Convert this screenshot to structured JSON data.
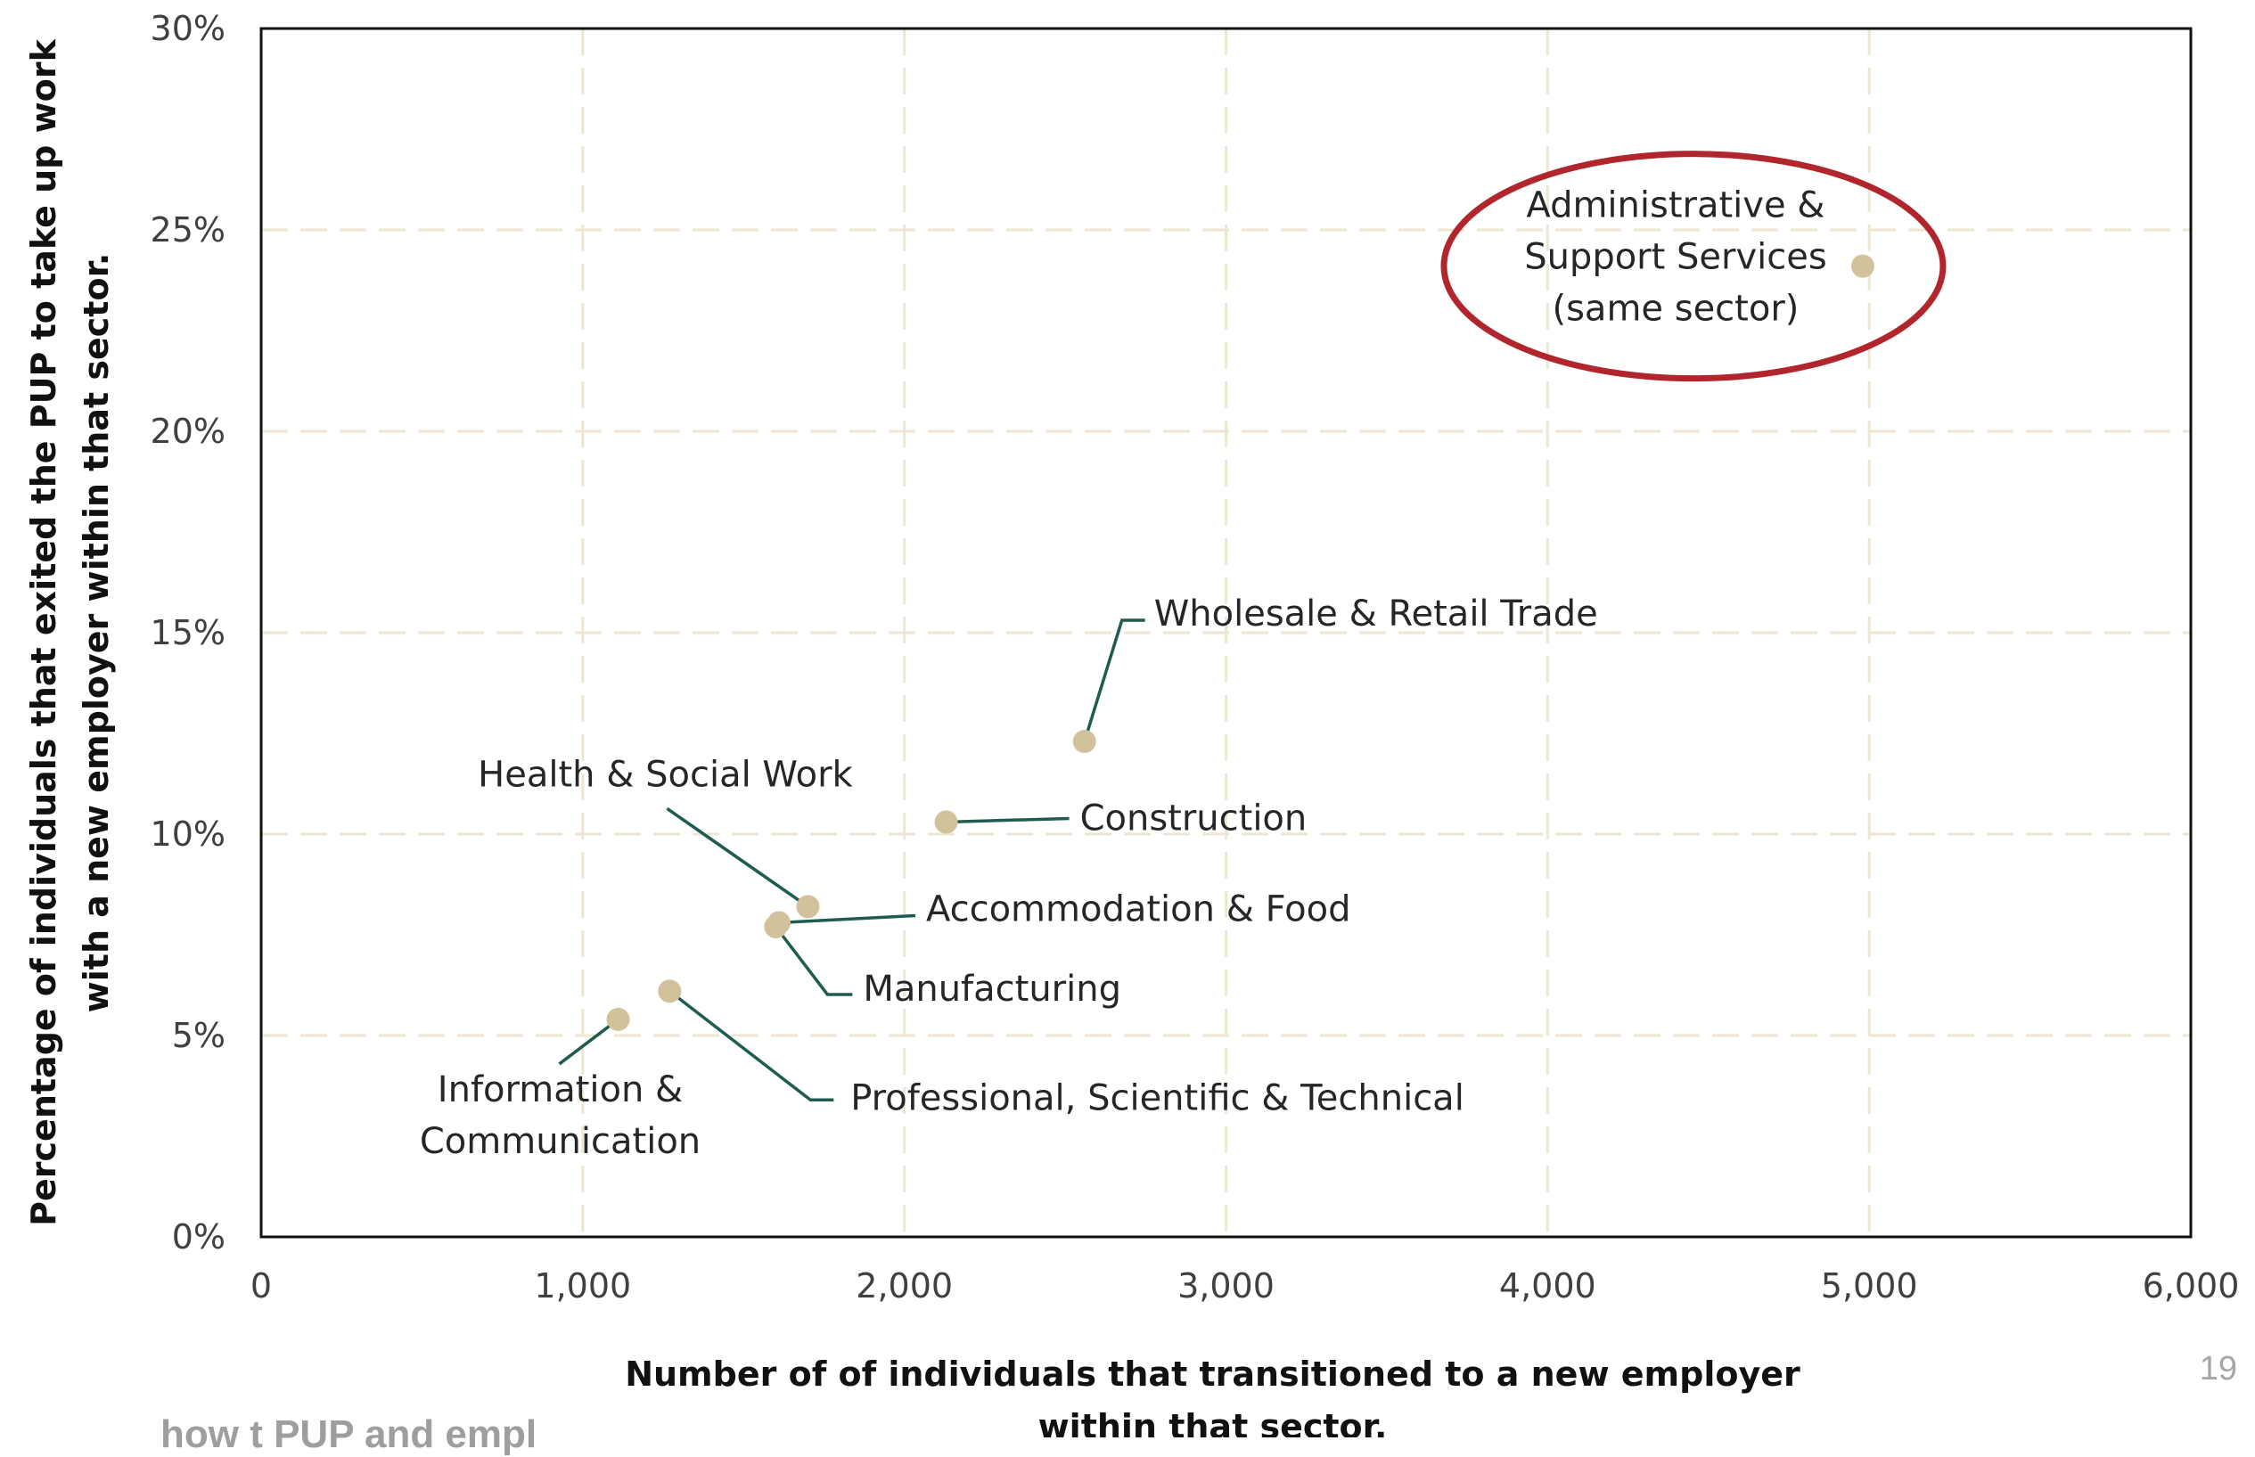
{
  "chart_data": {
    "type": "scatter",
    "title": "",
    "xlabel_lines": [
      "Number of of individuals that transitioned to a new employer",
      "within that sector."
    ],
    "ylabel_lines": [
      "Percentage of individuals that exited the PUP to take up work",
      "with a new employer within that sector."
    ],
    "xlim": [
      0,
      6000
    ],
    "ylim": [
      0,
      30
    ],
    "x_ticks": [
      0,
      1000,
      2000,
      3000,
      4000,
      5000,
      6000
    ],
    "x_tick_labels": [
      "0",
      "1,000",
      "2,000",
      "3,000",
      "4,000",
      "5,000",
      "6,000"
    ],
    "y_ticks": [
      0,
      5,
      10,
      15,
      20,
      25,
      30
    ],
    "y_tick_labels": [
      "0%",
      "5%",
      "10%",
      "15%",
      "20%",
      "25%",
      "30%"
    ],
    "grid": true,
    "marker_color": "#d2c29b",
    "leader_color": "#1f5c4f",
    "highlight_color": "#b0262c",
    "points": [
      {
        "label_lines": [
          "Administrative &",
          "Support Services",
          "(same sector)"
        ],
        "x": 4980,
        "y": 24.1,
        "highlight": true
      },
      {
        "label_lines": [
          "Wholesale & Retail Trade"
        ],
        "x": 2560,
        "y": 12.3
      },
      {
        "label_lines": [
          "Construction"
        ],
        "x": 2130,
        "y": 10.3
      },
      {
        "label_lines": [
          "Health & Social Work"
        ],
        "x": 1700,
        "y": 8.2
      },
      {
        "label_lines": [
          "Accommodation & Food"
        ],
        "x": 1610,
        "y": 7.8
      },
      {
        "label_lines": [
          "Manufacturing"
        ],
        "x": 1600,
        "y": 7.7
      },
      {
        "label_lines": [
          "Professional, Scientific & Technical"
        ],
        "x": 1270,
        "y": 6.1
      },
      {
        "label_lines": [
          "Information &",
          "Communication"
        ],
        "x": 1110,
        "y": 5.4
      }
    ]
  },
  "page": {
    "page_number": "19",
    "footer_fragment": "how t PUP and empl"
  }
}
